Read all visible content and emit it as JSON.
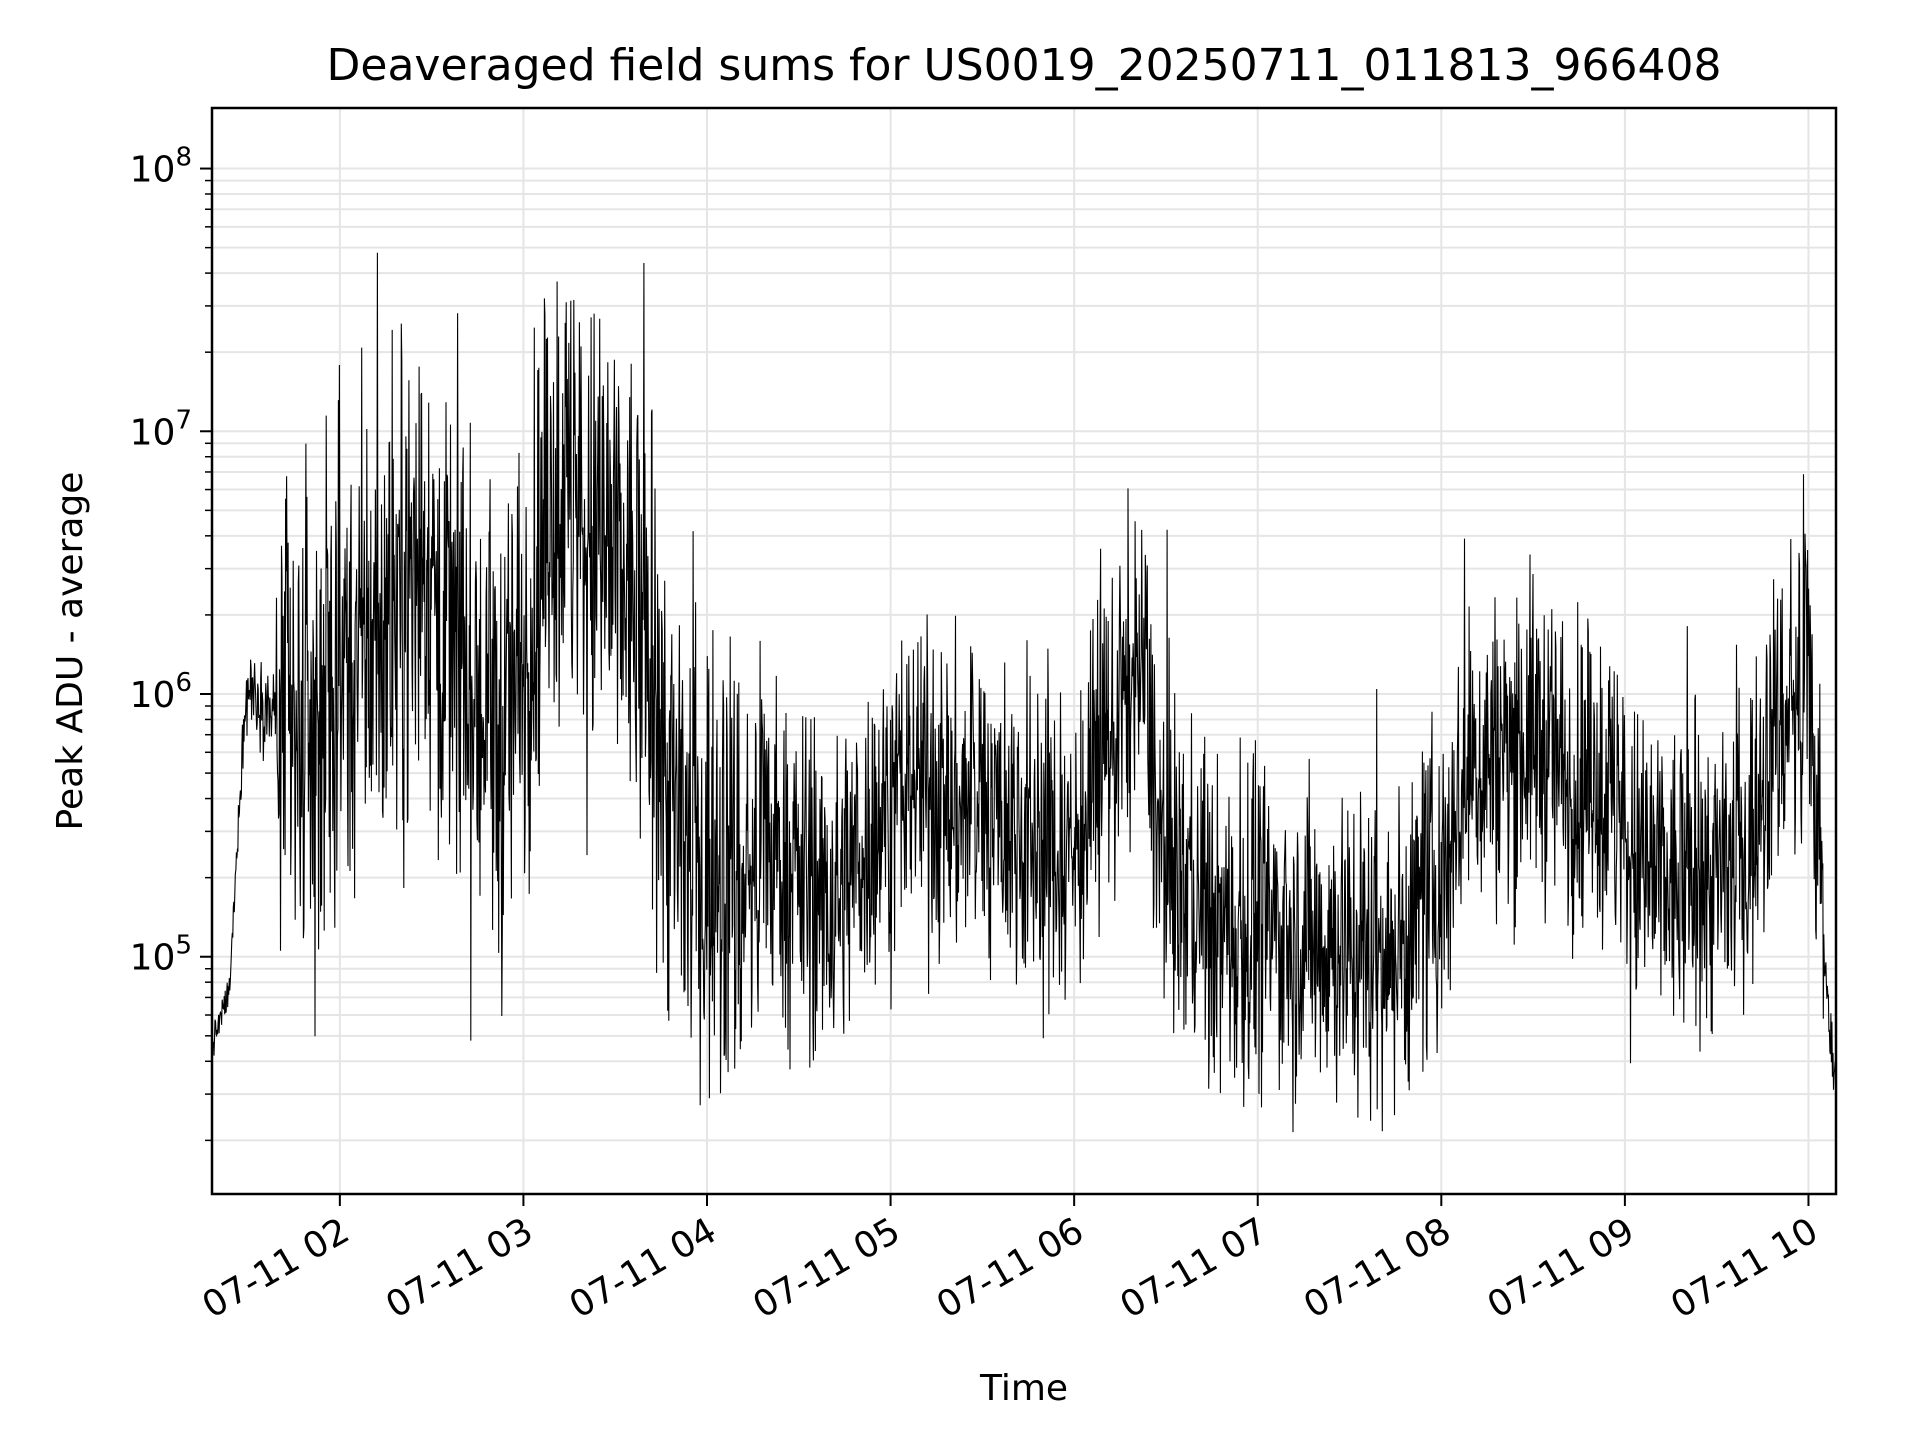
{
  "chart_data": {
    "type": "line",
    "title": "Deaveraged field sums for US0019_20250711_011813_966408",
    "xlabel": "Time",
    "ylabel": "Peak ADU - average",
    "x_axis": {
      "kind": "time",
      "range": [
        "2025-07-11 01:18:13",
        "2025-07-11 10:09:00"
      ],
      "tick_values": [
        "2025-07-11 02:00",
        "2025-07-11 03:00",
        "2025-07-11 04:00",
        "2025-07-11 05:00",
        "2025-07-11 06:00",
        "2025-07-11 07:00",
        "2025-07-11 08:00",
        "2025-07-11 09:00",
        "2025-07-11 10:00"
      ],
      "tick_labels": [
        "07-11 02",
        "07-11 03",
        "07-11 04",
        "07-11 05",
        "07-11 06",
        "07-11 07",
        "07-11 08",
        "07-11 09",
        "07-11 10"
      ],
      "tick_rotation_deg": 30
    },
    "y_axis": {
      "scale": "log",
      "range": [
        12500,
        170000000
      ],
      "major_ticks": [
        {
          "value": 100000,
          "base": "10",
          "exponent": "5"
        },
        {
          "value": 1000000,
          "base": "10",
          "exponent": "6"
        },
        {
          "value": 10000000,
          "base": "10",
          "exponent": "7"
        },
        {
          "value": 100000000,
          "base": "10",
          "exponent": "8"
        }
      ]
    },
    "grid": true,
    "minor_grid_y": true,
    "line_color": "#000000",
    "grid_color": "#e5e5e5",
    "series": [
      {
        "x": [
          "2025-07-11 01:18",
          "2025-07-11 01:24",
          "2025-07-11 01:28",
          "2025-07-11 01:30",
          "2025-07-11 01:33",
          "2025-07-11 01:38",
          "2025-07-11 01:45",
          "2025-07-11 01:53",
          "2025-07-11 02:00",
          "2025-07-11 02:08",
          "2025-07-11 02:17",
          "2025-07-11 02:27",
          "2025-07-11 02:37",
          "2025-07-11 02:45",
          "2025-07-11 02:53",
          "2025-07-11 03:00",
          "2025-07-11 03:05",
          "2025-07-11 03:12",
          "2025-07-11 03:20",
          "2025-07-11 03:28",
          "2025-07-11 03:35",
          "2025-07-11 03:42",
          "2025-07-11 03:50",
          "2025-07-11 03:58",
          "2025-07-11 04:05",
          "2025-07-11 04:12",
          "2025-07-11 04:20",
          "2025-07-11 04:30",
          "2025-07-11 04:40",
          "2025-07-11 04:50",
          "2025-07-11 05:00",
          "2025-07-11 05:10",
          "2025-07-11 05:20",
          "2025-07-11 05:30",
          "2025-07-11 05:40",
          "2025-07-11 05:50",
          "2025-07-11 06:00",
          "2025-07-11 06:10",
          "2025-07-11 06:18",
          "2025-07-11 06:23",
          "2025-07-11 06:28",
          "2025-07-11 06:38",
          "2025-07-11 06:48",
          "2025-07-11 07:00",
          "2025-07-11 07:15",
          "2025-07-11 07:30",
          "2025-07-11 07:45",
          "2025-07-11 08:00",
          "2025-07-11 08:08",
          "2025-07-11 08:18",
          "2025-07-11 08:30",
          "2025-07-11 08:42",
          "2025-07-11 08:55",
          "2025-07-11 09:05",
          "2025-07-11 09:18",
          "2025-07-11 09:30",
          "2025-07-11 09:40",
          "2025-07-11 09:48",
          "2025-07-11 09:55",
          "2025-07-11 10:00",
          "2025-07-11 10:03",
          "2025-07-11 10:07",
          "2025-07-11 10:09"
        ],
        "y": [
          45000,
          75000,
          600000,
          1100000,
          1000000,
          850000,
          600000,
          700000,
          1200000,
          1500000,
          2000000,
          3500000,
          1500000,
          900000,
          600000,
          1500000,
          3000000,
          6000000,
          4000000,
          3000000,
          2500000,
          1000000,
          300000,
          220000,
          250000,
          180000,
          250000,
          200000,
          150000,
          250000,
          400000,
          500000,
          350000,
          400000,
          300000,
          250000,
          250000,
          600000,
          1000000,
          1300000,
          250000,
          180000,
          120000,
          130000,
          120000,
          110000,
          100000,
          200000,
          500000,
          600000,
          700000,
          500000,
          400000,
          200000,
          180000,
          200000,
          250000,
          700000,
          900000,
          1000000,
          300000,
          50000,
          35000
        ]
      }
    ]
  }
}
